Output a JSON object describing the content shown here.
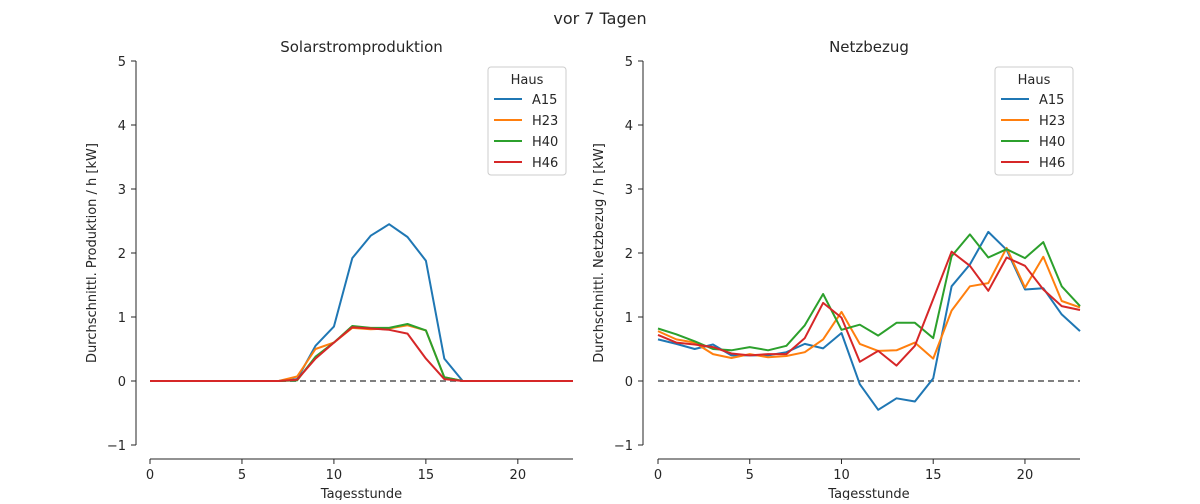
{
  "figure": {
    "title": "vor 7 Tagen"
  },
  "chart_data": [
    {
      "type": "line",
      "title": "Solarstromproduktion",
      "xlabel": "Tagesstunde",
      "ylabel": "Durchschnittl. Produktion / h [kW]",
      "xlim": [
        0,
        23
      ],
      "ylim": [
        -1,
        5
      ],
      "xticks": [
        "0",
        "5",
        "10",
        "15",
        "20"
      ],
      "yticks": [
        "−1",
        "0",
        "1",
        "2",
        "3",
        "4",
        "5"
      ],
      "hline": {
        "y": 0,
        "style": "dashed",
        "color": "#808080"
      },
      "legend": {
        "title": "Haus",
        "position": "upper right"
      },
      "x": [
        0,
        1,
        2,
        3,
        4,
        5,
        6,
        7,
        8,
        9,
        10,
        11,
        12,
        13,
        14,
        15,
        16,
        17,
        18,
        19,
        20,
        21,
        22,
        23
      ],
      "series": [
        {
          "name": "A15",
          "color": "#1f77b4",
          "values": [
            0,
            0,
            0,
            0,
            0,
            0,
            0,
            0,
            0.03,
            0.55,
            0.85,
            1.92,
            2.27,
            2.45,
            2.25,
            1.88,
            0.35,
            0,
            0,
            0,
            0,
            0,
            0,
            0
          ]
        },
        {
          "name": "H23",
          "color": "#ff7f0e",
          "values": [
            0,
            0,
            0,
            0,
            0,
            0,
            0,
            0,
            0.07,
            0.5,
            0.6,
            0.83,
            0.81,
            0.82,
            0.87,
            0.79,
            0.06,
            0,
            0,
            0,
            0,
            0,
            0,
            0
          ]
        },
        {
          "name": "H40",
          "color": "#2ca02c",
          "values": [
            0,
            0,
            0,
            0,
            0,
            0,
            0,
            0,
            0.01,
            0.38,
            0.6,
            0.86,
            0.83,
            0.83,
            0.89,
            0.79,
            0.06,
            0,
            0,
            0,
            0,
            0,
            0,
            0
          ]
        },
        {
          "name": "H46",
          "color": "#d62728",
          "values": [
            0,
            0,
            0,
            0,
            0,
            0,
            0,
            0,
            0.02,
            0.35,
            0.6,
            0.84,
            0.82,
            0.8,
            0.74,
            0.35,
            0.03,
            0,
            0,
            0,
            0,
            0,
            0,
            0
          ]
        }
      ]
    },
    {
      "type": "line",
      "title": "Netzbezug",
      "xlabel": "Tagesstunde",
      "ylabel": "Durchschnittl. Netzbezug / h [kW]",
      "xlim": [
        0,
        23
      ],
      "ylim": [
        -1,
        5
      ],
      "xticks": [
        "0",
        "5",
        "10",
        "15",
        "20"
      ],
      "yticks": [
        "−1",
        "0",
        "1",
        "2",
        "3",
        "4",
        "5"
      ],
      "hline": {
        "y": 0,
        "style": "dashed",
        "color": "#808080"
      },
      "legend": {
        "title": "Haus",
        "position": "upper right"
      },
      "x": [
        0,
        1,
        2,
        3,
        4,
        5,
        6,
        7,
        8,
        9,
        10,
        11,
        12,
        13,
        14,
        15,
        16,
        17,
        18,
        19,
        20,
        21,
        22,
        23
      ],
      "series": [
        {
          "name": "A15",
          "color": "#1f77b4",
          "values": [
            0.65,
            0.58,
            0.5,
            0.57,
            0.4,
            0.4,
            0.4,
            0.45,
            0.58,
            0.51,
            0.75,
            -0.05,
            -0.45,
            -0.27,
            -0.32,
            0.04,
            1.48,
            1.82,
            2.33,
            2.05,
            1.43,
            1.45,
            1.04,
            0.78
          ]
        },
        {
          "name": "H23",
          "color": "#ff7f0e",
          "values": [
            0.78,
            0.65,
            0.6,
            0.42,
            0.36,
            0.42,
            0.37,
            0.39,
            0.45,
            0.65,
            1.08,
            0.58,
            0.47,
            0.48,
            0.6,
            0.35,
            1.1,
            1.48,
            1.53,
            2.08,
            1.46,
            1.94,
            1.25,
            1.15
          ]
        },
        {
          "name": "H40",
          "color": "#2ca02c",
          "values": [
            0.82,
            0.73,
            0.62,
            0.5,
            0.48,
            0.53,
            0.48,
            0.55,
            0.87,
            1.36,
            0.8,
            0.88,
            0.71,
            0.91,
            0.91,
            0.67,
            1.95,
            2.29,
            1.93,
            2.06,
            1.92,
            2.17,
            1.48,
            1.17
          ]
        },
        {
          "name": "H46",
          "color": "#d62728",
          "values": [
            0.72,
            0.6,
            0.57,
            0.53,
            0.43,
            0.4,
            0.42,
            0.42,
            0.67,
            1.22,
            0.99,
            0.3,
            0.47,
            0.24,
            0.55,
            1.28,
            2.02,
            1.8,
            1.41,
            1.93,
            1.8,
            1.43,
            1.17,
            1.11
          ]
        }
      ]
    }
  ]
}
